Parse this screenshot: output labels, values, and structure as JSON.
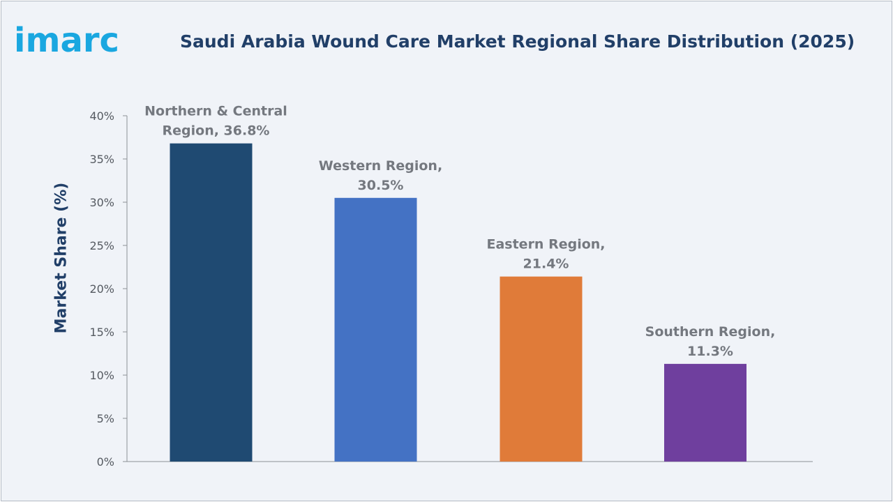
{
  "header": {
    "logo_text": "imarc",
    "title": "Saudi Arabia Wound Care Market Regional Share Distribution (2025)"
  },
  "chart_data": {
    "type": "bar",
    "title": "Saudi Arabia Wound Care Market Regional Share Distribution (2025)",
    "xlabel": "",
    "ylabel": "Market Share (%)",
    "categories": [
      "Northern & Central Region",
      "Western Region",
      "Eastern Region",
      "Southern Region"
    ],
    "values": [
      36.8,
      30.5,
      21.4,
      11.3
    ],
    "data_labels": [
      [
        "Northern & Central",
        "Region, 36.8%"
      ],
      [
        "Western Region,",
        "30.5%"
      ],
      [
        "Eastern Region,",
        "21.4%"
      ],
      [
        "Southern Region,",
        "11.3%"
      ]
    ],
    "colors": [
      "#1f4a72",
      "#4472c4",
      "#e07b39",
      "#6f3f9e"
    ],
    "ylim": [
      0,
      40
    ],
    "yticks": [
      0,
      5,
      10,
      15,
      20,
      25,
      30,
      35,
      40
    ],
    "ytick_labels": [
      "0%",
      "5%",
      "10%",
      "15%",
      "20%",
      "25%",
      "30%",
      "35%",
      "40%"
    ],
    "grid": false,
    "legend": "none"
  }
}
